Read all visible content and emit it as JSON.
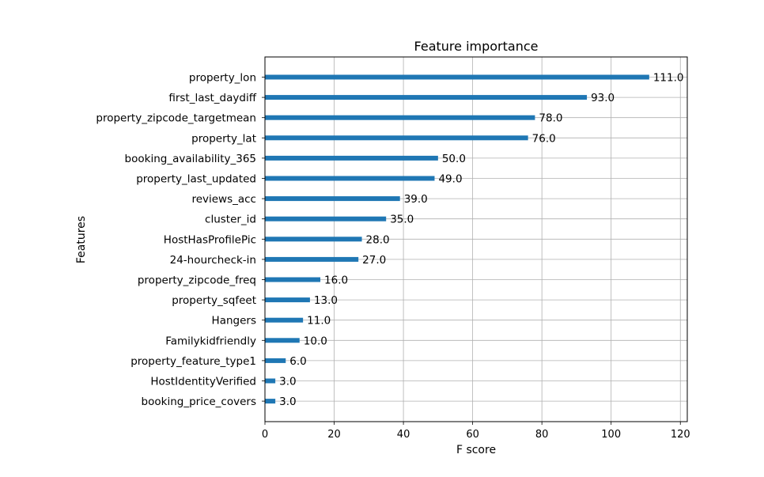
{
  "chart_data": {
    "type": "bar",
    "orientation": "horizontal",
    "title": "Feature importance",
    "xlabel": "F score",
    "ylabel": "Features",
    "xlim": [
      0,
      122
    ],
    "xticks": [
      0,
      20,
      40,
      60,
      80,
      100,
      120
    ],
    "grid": true,
    "bar_color": "#1f77b4",
    "categories": [
      "property_lon",
      "first_last_daydiff",
      "property_zipcode_targetmean",
      "property_lat",
      "booking_availability_365",
      "property_last_updated",
      "reviews_acc",
      "cluster_id",
      "HostHasProfilePic",
      "24-hourcheck-in",
      "property_zipcode_freq",
      "property_sqfeet",
      "Hangers",
      "Familykidfriendly",
      "property_feature_type1",
      "HostIdentityVerified",
      "booking_price_covers"
    ],
    "values": [
      111,
      93,
      78,
      76,
      50,
      49,
      39,
      35,
      28,
      27,
      16,
      13,
      11,
      10,
      6,
      3,
      3
    ],
    "data_labels": [
      "111.0",
      "93.0",
      "78.0",
      "76.0",
      "50.0",
      "49.0",
      "39.0",
      "35.0",
      "28.0",
      "27.0",
      "16.0",
      "13.0",
      "11.0",
      "10.0",
      "6.0",
      "3.0",
      "3.0"
    ]
  }
}
